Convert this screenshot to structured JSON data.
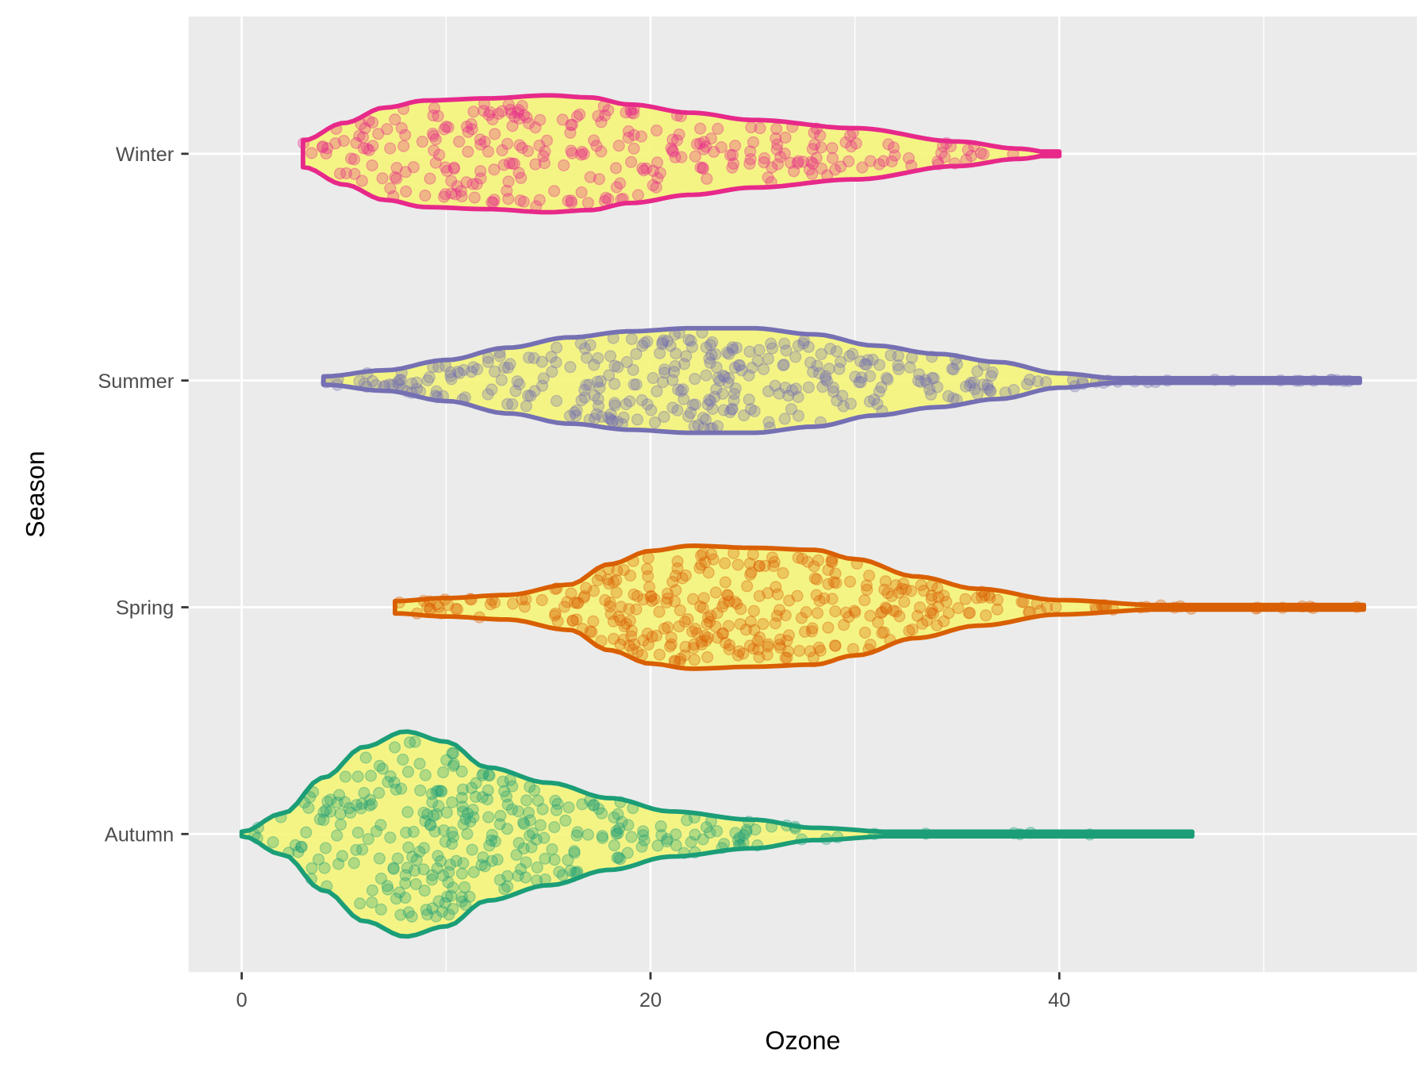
{
  "chart_data": {
    "type": "violin",
    "orientation": "horizontal",
    "title": "",
    "xlabel": "Ozone",
    "ylabel": "Season",
    "xlim": [
      -2.6,
      57.5
    ],
    "x_ticks": [
      0,
      20,
      40
    ],
    "x_minor_ticks": [
      10,
      30,
      50
    ],
    "categories": [
      "Winter",
      "Summer",
      "Spring",
      "Autumn"
    ],
    "grid": true,
    "legend": "none",
    "violin_fill": "#F5F57A",
    "series": [
      {
        "name": "Winter",
        "color": "#E7298A",
        "range": [
          3,
          40
        ],
        "points_count": 300,
        "density_profile": [
          [
            3,
            0.13
          ],
          [
            5,
            0.3
          ],
          [
            7,
            0.45
          ],
          [
            9,
            0.52
          ],
          [
            12,
            0.54
          ],
          [
            15,
            0.57
          ],
          [
            17,
            0.55
          ],
          [
            19,
            0.48
          ],
          [
            22,
            0.4
          ],
          [
            25,
            0.33
          ],
          [
            30,
            0.25
          ],
          [
            35,
            0.12
          ],
          [
            38,
            0.05
          ],
          [
            40,
            0
          ]
        ]
      },
      {
        "name": "Summer",
        "color": "#7570B3",
        "range": [
          4,
          54.7
        ],
        "points_count": 360,
        "density_profile": [
          [
            4,
            0.04
          ],
          [
            7,
            0.1
          ],
          [
            10,
            0.2
          ],
          [
            13,
            0.32
          ],
          [
            16,
            0.42
          ],
          [
            19,
            0.48
          ],
          [
            22,
            0.51
          ],
          [
            25,
            0.51
          ],
          [
            28,
            0.45
          ],
          [
            31,
            0.34
          ],
          [
            34,
            0.26
          ],
          [
            37,
            0.18
          ],
          [
            40,
            0.07
          ],
          [
            43,
            0.02
          ],
          [
            47,
            0.01
          ],
          [
            54.7,
            0.01
          ]
        ]
      },
      {
        "name": "Spring",
        "color": "#D95F02",
        "range": [
          7.5,
          54.9
        ],
        "points_count": 360,
        "density_profile": [
          [
            7.5,
            0.06
          ],
          [
            10,
            0.09
          ],
          [
            13,
            0.12
          ],
          [
            16,
            0.22
          ],
          [
            18,
            0.42
          ],
          [
            20,
            0.55
          ],
          [
            22,
            0.6
          ],
          [
            25,
            0.58
          ],
          [
            28,
            0.56
          ],
          [
            30,
            0.47
          ],
          [
            33,
            0.3
          ],
          [
            36,
            0.18
          ],
          [
            40,
            0.07
          ],
          [
            45,
            0.02
          ],
          [
            54.9,
            0.01
          ]
        ]
      },
      {
        "name": "Autumn",
        "color": "#1B9E77",
        "range": [
          0,
          46.5
        ],
        "points_count": 330,
        "density_profile": [
          [
            0,
            0.02
          ],
          [
            2,
            0.2
          ],
          [
            4,
            0.55
          ],
          [
            6,
            0.85
          ],
          [
            8,
            1
          ],
          [
            10,
            0.9
          ],
          [
            12,
            0.65
          ],
          [
            15,
            0.5
          ],
          [
            18,
            0.35
          ],
          [
            21,
            0.22
          ],
          [
            25,
            0.14
          ],
          [
            28,
            0.06
          ],
          [
            32,
            0.02
          ],
          [
            46.5,
            0.01
          ]
        ]
      }
    ]
  }
}
